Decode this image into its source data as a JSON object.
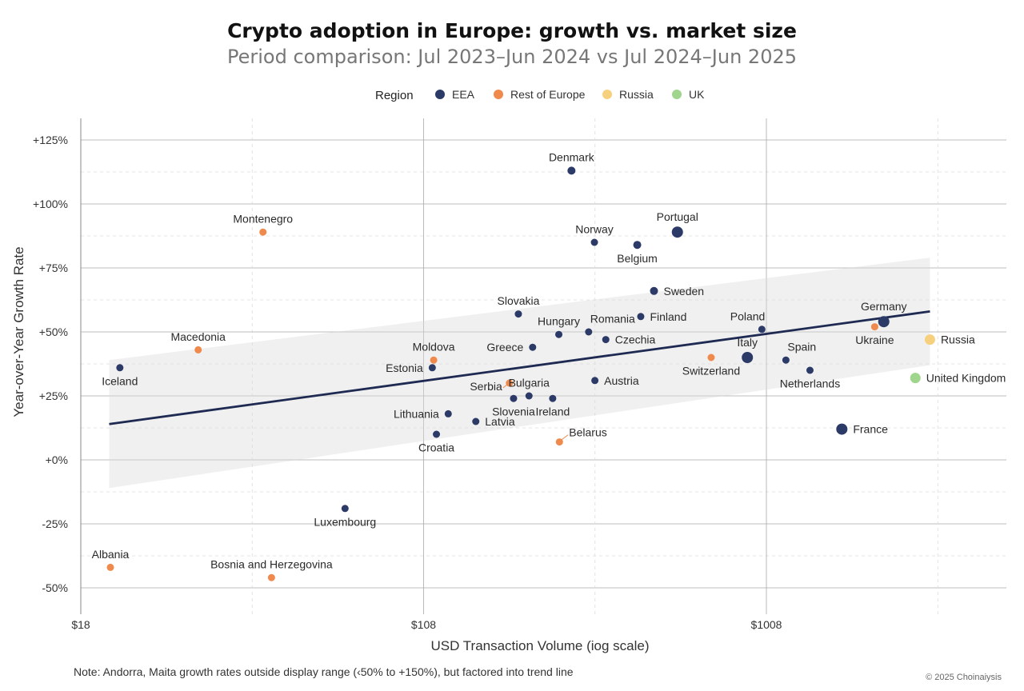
{
  "chart_data": {
    "type": "scatter",
    "title": "Crypto adoption in Europe: growth vs. market size",
    "subtitle": "Period comparison: Jul 2023–Jun 2024 vs Jul 2024–Jun 2025",
    "xlabel": "USD Transaction Volume (iog scale)",
    "ylabel": "Year-over-Year Growth Rate",
    "x_scale": "log",
    "x_ticks": [
      {
        "value": 1,
        "label": "$18"
      },
      {
        "value": 10,
        "label": "$108"
      },
      {
        "value": 100,
        "label": "$1008"
      }
    ],
    "y_ticks": [
      {
        "value": -50,
        "label": "-50%"
      },
      {
        "value": -25,
        "label": "-25%"
      },
      {
        "value": 0,
        "label": "+0%"
      },
      {
        "value": 25,
        "label": "+25%"
      },
      {
        "value": 50,
        "label": "+50%"
      },
      {
        "value": 75,
        "label": "+75%"
      },
      {
        "value": 100,
        "label": "+100%"
      },
      {
        "value": 125,
        "label": "+125%"
      }
    ],
    "xlim": [
      1,
      300
    ],
    "ylim": [
      -58,
      133
    ],
    "grid": true,
    "legend": {
      "title": "Region",
      "placement": "top"
    },
    "series": [
      {
        "name": "EEA",
        "color": "#2b3a66"
      },
      {
        "name": "Rest of Europe",
        "color": "#ef8a4c"
      },
      {
        "name": "Russia",
        "color": "#f7d07e"
      },
      {
        "name": "UK",
        "color": "#9fd58c"
      }
    ],
    "points": [
      {
        "label": "Denmark",
        "x": 27,
        "y": 113,
        "series": "EEA",
        "size": 5,
        "lpos": "above"
      },
      {
        "label": "Montenegro",
        "x": 3.4,
        "y": 89,
        "series": "Rest of Europe",
        "size": 4.5,
        "lpos": "above"
      },
      {
        "label": "Portugal",
        "x": 55,
        "y": 89,
        "series": "EEA",
        "size": 7,
        "lpos": "above"
      },
      {
        "label": "Norway",
        "x": 31.5,
        "y": 85,
        "series": "EEA",
        "size": 4.5,
        "lpos": "above"
      },
      {
        "label": "Belgium",
        "x": 42,
        "y": 84,
        "series": "EEA",
        "size": 5,
        "lpos": "below"
      },
      {
        "label": "Sweden",
        "x": 47,
        "y": 66,
        "series": "EEA",
        "size": 5,
        "lpos": "right"
      },
      {
        "label": "Slovakia",
        "x": 18.9,
        "y": 57,
        "series": "EEA",
        "size": 4.5,
        "lpos": "above"
      },
      {
        "label": "Finland",
        "x": 43,
        "y": 56,
        "series": "EEA",
        "size": 4.5,
        "lpos": "right"
      },
      {
        "label": "Germany",
        "x": 220,
        "y": 54,
        "series": "EEA",
        "size": 7,
        "lpos": "above"
      },
      {
        "label": "Ukraine",
        "x": 207,
        "y": 52,
        "series": "Rest of Europe",
        "size": 4.5,
        "lpos": "below"
      },
      {
        "label": "Poland",
        "x": 97,
        "y": 51,
        "series": "EEA",
        "size": 4.5,
        "lpos": "aboveleft"
      },
      {
        "label": "Romania",
        "x": 30.3,
        "y": 50,
        "series": "EEA",
        "size": 4.5,
        "lpos": "aboveright"
      },
      {
        "label": "Hungary",
        "x": 24.8,
        "y": 49,
        "series": "EEA",
        "size": 4.5,
        "lpos": "above"
      },
      {
        "label": "Czechia",
        "x": 34,
        "y": 47,
        "series": "EEA",
        "size": 4.5,
        "lpos": "right"
      },
      {
        "label": "Russia",
        "x": 300,
        "y": 47,
        "series": "Russia",
        "size": 6.5,
        "lpos": "right"
      },
      {
        "label": "Greece",
        "x": 20.8,
        "y": 44,
        "series": "EEA",
        "size": 4.5,
        "lpos": "left"
      },
      {
        "label": "Macedonia",
        "x": 2.2,
        "y": 43,
        "series": "Rest of Europe",
        "size": 4.5,
        "lpos": "above"
      },
      {
        "label": "Italy",
        "x": 88,
        "y": 40,
        "series": "EEA",
        "size": 7,
        "lpos": "above"
      },
      {
        "label": "Moldova",
        "x": 10.7,
        "y": 39,
        "series": "Rest of Europe",
        "size": 4.5,
        "lpos": "above"
      },
      {
        "label": "Switzerland",
        "x": 69,
        "y": 40,
        "series": "Rest of Europe",
        "size": 4.5,
        "lpos": "below"
      },
      {
        "label": "Spain",
        "x": 114,
        "y": 39,
        "series": "EEA",
        "size": 4.5,
        "lpos": "aboveright"
      },
      {
        "label": "Iceland",
        "x": 1.3,
        "y": 36,
        "series": "EEA",
        "size": 4.5,
        "lpos": "below"
      },
      {
        "label": "Estonia",
        "x": 10.6,
        "y": 36,
        "series": "EEA",
        "size": 4.5,
        "lpos": "left"
      },
      {
        "label": "Netherlands",
        "x": 134,
        "y": 35,
        "series": "EEA",
        "size": 4.5,
        "lpos": "below"
      },
      {
        "label": "United Kingdom",
        "x": 272,
        "y": 32,
        "series": "UK",
        "size": 6.5,
        "lpos": "right"
      },
      {
        "label": "Austria",
        "x": 31.6,
        "y": 31,
        "series": "EEA",
        "size": 4.5,
        "lpos": "right"
      },
      {
        "label": "Serbia",
        "x": 17.8,
        "y": 30,
        "series": "Rest of Europe",
        "size": 4.5,
        "lpos": "left"
      },
      {
        "label": "Bulgaria",
        "x": 20.3,
        "y": 25,
        "series": "EEA",
        "size": 4.5,
        "lpos": "above"
      },
      {
        "label": "Slovenia",
        "x": 18.3,
        "y": 24,
        "series": "EEA",
        "size": 4.5,
        "lpos": "below"
      },
      {
        "label": "Ireland",
        "x": 23.8,
        "y": 24,
        "series": "EEA",
        "size": 4.5,
        "lpos": "below"
      },
      {
        "label": "Lithuania",
        "x": 11.8,
        "y": 18,
        "series": "EEA",
        "size": 4.5,
        "lpos": "left"
      },
      {
        "label": "Latvia",
        "x": 14.2,
        "y": 15,
        "series": "EEA",
        "size": 4.5,
        "lpos": "right"
      },
      {
        "label": "France",
        "x": 166,
        "y": 12,
        "series": "EEA",
        "size": 7,
        "lpos": "right"
      },
      {
        "label": "Croatia",
        "x": 10.9,
        "y": 10,
        "series": "EEA",
        "size": 4.5,
        "lpos": "below"
      },
      {
        "label": "Belarus",
        "x": 24.9,
        "y": 7,
        "series": "Rest of Europe",
        "size": 4.5,
        "lpos": "aboveright"
      },
      {
        "label": "Luxembourg",
        "x": 5.9,
        "y": -19,
        "series": "EEA",
        "size": 4.5,
        "lpos": "below"
      },
      {
        "label": "Albania",
        "x": 1.22,
        "y": -42,
        "series": "Rest of Europe",
        "size": 4.5,
        "lpos": "above"
      },
      {
        "label": "Bosnia and Herzegovina",
        "x": 3.6,
        "y": -46,
        "series": "Rest of Europe",
        "size": 4.5,
        "lpos": "above"
      }
    ],
    "trend_line": {
      "x": [
        1.21,
        300
      ],
      "y": [
        14,
        58
      ]
    },
    "confidence_band": {
      "x": [
        1.21,
        300
      ],
      "y_upper": [
        39,
        79
      ],
      "y_lower": [
        -11,
        37
      ]
    },
    "reference_line_y": 50
  },
  "note": "Note: Andorra, Maita growth rates outside display range (‹50% to +150%), but factored into trend line",
  "credit": "© 2025 Choinaiysis"
}
